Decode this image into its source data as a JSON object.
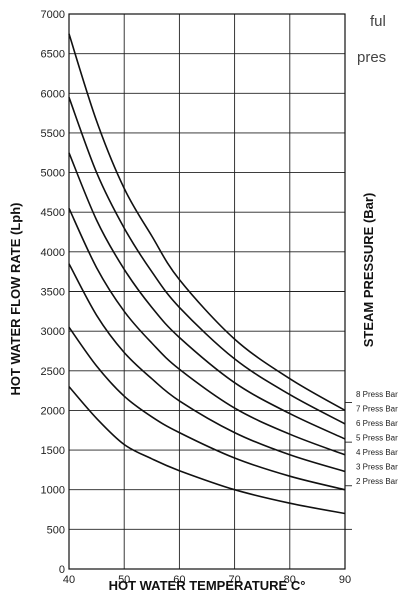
{
  "page": {
    "partial_text": [
      "ful",
      "pres"
    ]
  },
  "chart_data": {
    "type": "line",
    "xlabel": "HOT WATER TEMPERATURE C°",
    "ylabel": "HOT WATER FLOW RATE (Lph)",
    "right_axis_label": "STEAM PRESSURE (Bar)",
    "xlim": [
      40,
      90
    ],
    "ylim": [
      0,
      7000
    ],
    "x_ticks": [
      40,
      50,
      60,
      70,
      80,
      90
    ],
    "y_ticks": [
      0,
      500,
      1000,
      1500,
      2000,
      2500,
      3000,
      3500,
      4000,
      4500,
      5000,
      5500,
      6000,
      6500,
      7000
    ],
    "grid": true,
    "x": [
      40,
      45,
      50,
      55,
      60,
      70,
      80,
      90
    ],
    "series": [
      {
        "name": "8 Press Bar",
        "values": [
          6750,
          5650,
          4800,
          4200,
          3650,
          2900,
          2400,
          2000
        ]
      },
      {
        "name": "7 Press Bar",
        "values": [
          5950,
          5000,
          4300,
          3750,
          3300,
          2650,
          2200,
          1830
        ]
      },
      {
        "name": "6 Press Bar",
        "values": [
          5250,
          4400,
          3780,
          3300,
          2920,
          2350,
          1960,
          1640
        ]
      },
      {
        "name": "5 Press Bar",
        "values": [
          4550,
          3800,
          3250,
          2850,
          2520,
          2030,
          1700,
          1440
        ]
      },
      {
        "name": "4 Press Bar",
        "values": [
          3850,
          3200,
          2730,
          2400,
          2120,
          1720,
          1440,
          1230
        ]
      },
      {
        "name": "3 Press Bar",
        "values": [
          3050,
          2560,
          2180,
          1920,
          1720,
          1400,
          1170,
          1000
        ]
      },
      {
        "name": "2 Press Bar",
        "values": [
          2300,
          1900,
          1570,
          1390,
          1240,
          1000,
          830,
          700
        ]
      }
    ],
    "right_horizontal_lines": [
      2100,
      1600,
      1050,
      500
    ]
  }
}
